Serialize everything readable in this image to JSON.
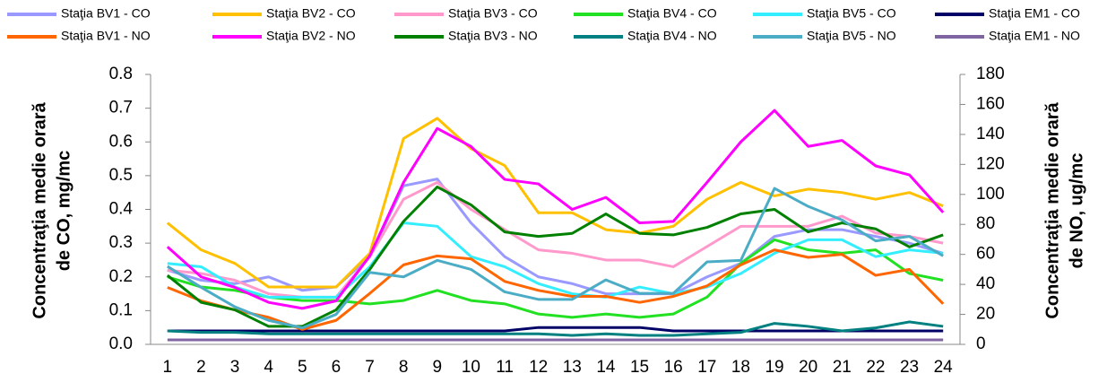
{
  "chart_data": {
    "type": "line",
    "y_label": [
      "Concentraţia medie orară",
      "de CO, mg/mc"
    ],
    "y2_label": [
      "Concentraţia medie orară",
      "de NO, ug/mc"
    ],
    "categories": [
      "1",
      "2",
      "3",
      "4",
      "5",
      "6",
      "7",
      "8",
      "9",
      "10",
      "11",
      "12",
      "13",
      "14",
      "15",
      "16",
      "17",
      "18",
      "19",
      "20",
      "21",
      "22",
      "23",
      "24"
    ],
    "ylim": [
      0,
      0.8
    ],
    "yticks": [
      {
        "value": 0,
        "label": "0.0"
      },
      {
        "value": 0.1,
        "label": "0.1"
      },
      {
        "value": 0.2,
        "label": "0.2"
      },
      {
        "value": 0.3,
        "label": "0.3"
      },
      {
        "value": 0.4,
        "label": "0.4"
      },
      {
        "value": 0.5,
        "label": "0.5"
      },
      {
        "value": 0.6,
        "label": "0.6"
      },
      {
        "value": 0.7,
        "label": "0.7"
      },
      {
        "value": 0.8,
        "label": "0.8"
      }
    ],
    "y2lim": [
      0,
      180
    ],
    "y2ticks": [
      0,
      20,
      40,
      60,
      80,
      100,
      120,
      140,
      160,
      180
    ],
    "grid": false,
    "series": [
      {
        "name": "Staţia BV1 - CO",
        "color": "#9999ff",
        "values": [
          0.22,
          0.19,
          0.18,
          0.2,
          0.16,
          0.17,
          0.26,
          0.47,
          0.49,
          0.36,
          0.26,
          0.2,
          0.18,
          0.15,
          0.15,
          0.15,
          0.2,
          0.24,
          0.32,
          0.34,
          0.34,
          0.32,
          0.3,
          0.27
        ]
      },
      {
        "name": "Staţia BV2 - CO",
        "color": "#ffc000",
        "values": [
          0.36,
          0.28,
          0.24,
          0.17,
          0.17,
          0.17,
          0.27,
          0.61,
          0.67,
          0.58,
          0.53,
          0.39,
          0.39,
          0.34,
          0.33,
          0.35,
          0.43,
          0.48,
          0.44,
          0.46,
          0.45,
          0.43,
          0.45,
          0.41
        ]
      },
      {
        "name": "Staţia BV3 - CO",
        "color": "#ff99cc",
        "values": [
          0.22,
          0.21,
          0.19,
          0.15,
          0.14,
          0.14,
          0.26,
          0.43,
          0.48,
          0.4,
          0.34,
          0.28,
          0.27,
          0.25,
          0.25,
          0.23,
          0.29,
          0.35,
          0.35,
          0.35,
          0.38,
          0.33,
          0.32,
          0.3
        ]
      },
      {
        "name": "Staţia BV4 - CO",
        "color": "#22e022",
        "values": [
          0.2,
          0.17,
          0.16,
          0.14,
          0.13,
          0.13,
          0.12,
          0.13,
          0.16,
          0.13,
          0.12,
          0.09,
          0.08,
          0.09,
          0.08,
          0.09,
          0.14,
          0.24,
          0.31,
          0.28,
          0.27,
          0.28,
          0.21,
          0.19
        ]
      },
      {
        "name": "Staţia BV5 - CO",
        "color": "#33eeff",
        "values": [
          0.24,
          0.23,
          0.17,
          0.14,
          0.14,
          0.14,
          0.23,
          0.36,
          0.35,
          0.26,
          0.23,
          0.18,
          0.15,
          0.14,
          0.17,
          0.15,
          0.17,
          0.21,
          0.27,
          0.31,
          0.31,
          0.26,
          0.28,
          0.27
        ]
      },
      {
        "name": "Staţia EM1 - CO",
        "color": "#000066",
        "values": [
          0.04,
          0.04,
          0.04,
          0.04,
          0.04,
          0.04,
          0.04,
          0.04,
          0.04,
          0.04,
          0.04,
          0.05,
          0.05,
          0.05,
          0.05,
          0.04,
          0.04,
          0.04,
          0.04,
          0.04,
          0.04,
          0.04,
          0.04,
          0.04
        ]
      },
      {
        "name": "Staţia BV1 - NO",
        "color": "#ff6600",
        "axis": "y2",
        "values": [
          38,
          29,
          23,
          18,
          10,
          16,
          34,
          53,
          59,
          57,
          42,
          36,
          32,
          32,
          28,
          32,
          39,
          53,
          63,
          58,
          60,
          46,
          50,
          27
        ]
      },
      {
        "name": "Staţia BV2 - NO",
        "color": "#ff00ff",
        "axis": "y2",
        "values": [
          65,
          45,
          38,
          28,
          24,
          29,
          59,
          108,
          144,
          132,
          110,
          107,
          90,
          98,
          81,
          82,
          108,
          135,
          156,
          132,
          136,
          119,
          113,
          88
        ]
      },
      {
        "name": "Staţia BV3 - NO",
        "color": "#008000",
        "axis": "y2",
        "values": [
          46,
          28,
          23,
          12,
          12,
          23,
          50,
          82,
          105,
          93,
          75,
          72,
          74,
          87,
          74,
          73,
          78,
          87,
          90,
          75,
          81,
          77,
          65,
          73
        ]
      },
      {
        "name": "Staţia BV4 - NO",
        "color": "#008080",
        "axis": "y2",
        "values": [
          9,
          8,
          8,
          7,
          7,
          7,
          7,
          7,
          7,
          7,
          7,
          7,
          6,
          7,
          6,
          6,
          7,
          8,
          14,
          12,
          9,
          11,
          15,
          12
        ]
      },
      {
        "name": "Staţia BV5 - NO",
        "color": "#4bacc6",
        "axis": "y2",
        "values": [
          52,
          38,
          25,
          16,
          11,
          20,
          48,
          45,
          56,
          50,
          35,
          30,
          30,
          43,
          34,
          34,
          55,
          56,
          104,
          92,
          83,
          69,
          72,
          59
        ]
      },
      {
        "name": "Staţia EM1 - NO",
        "color": "#8064a2",
        "axis": "y2",
        "values": [
          3,
          3,
          3,
          3,
          3,
          3,
          3,
          3,
          3,
          3,
          3,
          3,
          3,
          3,
          3,
          3,
          3,
          3,
          3,
          3,
          3,
          3,
          3,
          3
        ]
      }
    ]
  }
}
